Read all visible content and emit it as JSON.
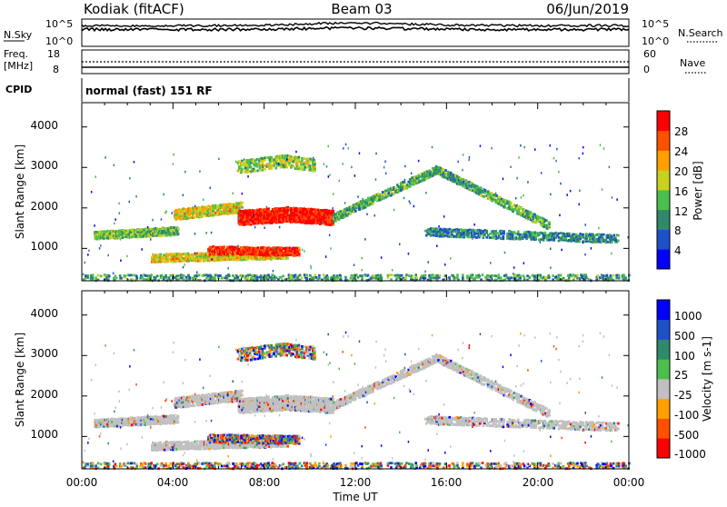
{
  "header": {
    "title": "Kodiak (fitACF)",
    "beam": "Beam 03",
    "date": "06/Jun/2019"
  },
  "strips": {
    "nsky_label": "N.Sky",
    "nsky_ticks": [
      "10^5",
      "10^0"
    ],
    "nsearch_label": "N.Search",
    "nsearch_ticks": [
      "10^5",
      "10^0"
    ],
    "freq_label_line1": "Freq.",
    "freq_label_line2": "[MHz]",
    "freq_ticks": [
      "18",
      "8"
    ],
    "nave_label": "Nave",
    "nave_ticks": [
      "60",
      "0"
    ],
    "cpid_label": "CPID",
    "cpid_text": "normal (fast) 151 RF"
  },
  "colors": {
    "power_scale": [
      "#0000ff",
      "#1e50c8",
      "#2f8a6a",
      "#4bbf4b",
      "#c8d21e",
      "#ffa000",
      "#ff5000",
      "#ff0000"
    ],
    "velocity_scale": [
      "#0000ff",
      "#1e50c8",
      "#2f8a6a",
      "#4bbf4b",
      "#c0c0c0",
      "#ffa000",
      "#ff5000",
      "#ff0000"
    ],
    "ground_scatter": "#c0c0c0"
  },
  "chart_data": [
    {
      "type": "heatmap",
      "ylabel": "Slant Range [km]",
      "yticks": [
        "1000",
        "2000",
        "3000",
        "4000"
      ],
      "ylim": [
        200,
        4600
      ],
      "xticks": [
        "00:00",
        "04:00",
        "08:00",
        "12:00",
        "16:00",
        "20:00",
        "00:00"
      ],
      "xlim": [
        "00:00",
        "24:00"
      ],
      "colorbar": {
        "label": "Power [dB]",
        "ticks": [
          "4",
          "8",
          "12",
          "16",
          "20",
          "24",
          "28"
        ],
        "range": [
          0,
          32
        ]
      }
    },
    {
      "type": "heatmap",
      "ylabel": "Slant Range [km]",
      "yticks": [
        "1000",
        "2000",
        "3000",
        "4000"
      ],
      "ylim": [
        200,
        4600
      ],
      "xticks": [
        "00:00",
        "04:00",
        "08:00",
        "12:00",
        "16:00",
        "20:00",
        "00:00"
      ],
      "xlim": [
        "00:00",
        "24:00"
      ],
      "xlabel": "Time UT",
      "colorbar": {
        "label": "Velocity [m s-1]",
        "ticks": [
          "1000",
          "500",
          "100",
          "25",
          "-25",
          "-100",
          "-500",
          "-1000"
        ]
      }
    }
  ]
}
